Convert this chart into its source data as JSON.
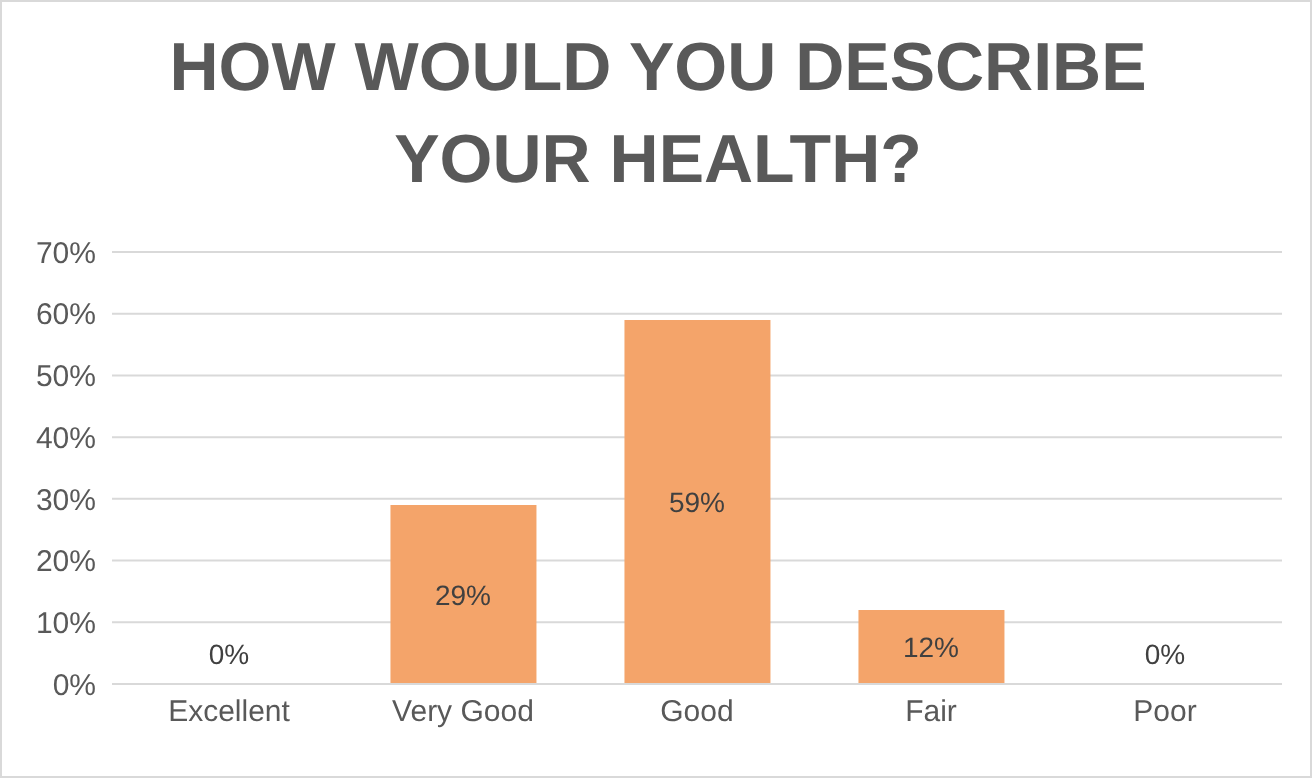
{
  "chart_data": {
    "type": "bar",
    "title": "HOW WOULD YOU DESCRIBE YOUR HEALTH?",
    "categories": [
      "Excellent",
      "Very Good",
      "Good",
      "Fair",
      "Poor"
    ],
    "values": [
      0,
      29,
      59,
      12,
      0
    ],
    "color": "#f4a46a",
    "value_labels": [
      "0%",
      "29%",
      "59%",
      "12%",
      "0%"
    ],
    "ylim": [
      0,
      70
    ],
    "yticks": [
      {
        "value": 0,
        "label": "0%"
      },
      {
        "value": 10,
        "label": "10%"
      },
      {
        "value": 20,
        "label": "20%"
      },
      {
        "value": 30,
        "label": "30%"
      },
      {
        "value": 40,
        "label": "40%"
      },
      {
        "value": 50,
        "label": "50%"
      },
      {
        "value": 60,
        "label": "60%"
      },
      {
        "value": 70,
        "label": "70%"
      }
    ],
    "grid": "y",
    "legend": false
  }
}
